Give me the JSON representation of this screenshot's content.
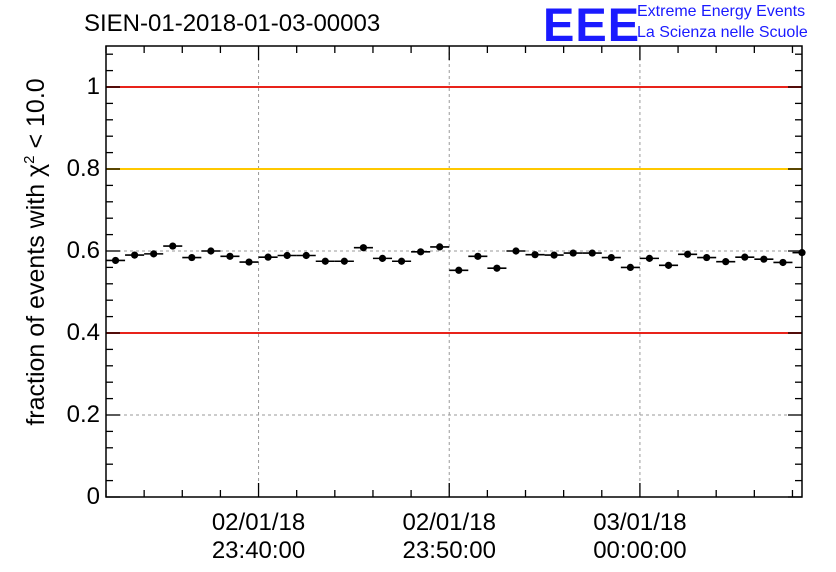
{
  "title": "SIEN-01-2018-01-03-00003",
  "logo": {
    "mark": "EEE",
    "line1": "Extreme Energy Events",
    "line2": "La Scienza nelle Scuole"
  },
  "chart_data": {
    "type": "scatter",
    "title": "SIEN-01-2018-01-03-00003",
    "ylabel_prefix": "fraction of events with ",
    "ylabel_symbol": "χ",
    "ylabel_power": "2",
    "ylabel_suffix": " < 10.0",
    "ylim": [
      0,
      1.1
    ],
    "y_ticks": [
      0,
      0.2,
      0.4,
      0.6,
      0.8,
      1
    ],
    "y_tick_labels": [
      "0",
      "0.2",
      "0.4",
      "0.6",
      "0.8",
      "1"
    ],
    "x_unit": "minutes relative to 02/01/18 23:40:00",
    "xlim": [
      -8,
      28.5
    ],
    "x_ticks": [
      {
        "value": 0,
        "date": "02/01/18",
        "time": "23:40:00"
      },
      {
        "value": 10,
        "date": "02/01/18",
        "time": "23:50:00"
      },
      {
        "value": 20,
        "date": "03/01/18",
        "time": "00:00:00"
      }
    ],
    "grid": true,
    "reference_lines": [
      {
        "y": 1.0,
        "color": "#e8231a"
      },
      {
        "y": 0.8,
        "color": "#ffc800"
      },
      {
        "y": 0.4,
        "color": "#e8231a"
      }
    ],
    "bin_width": 1.0,
    "x": [
      -7.5,
      -6.5,
      -5.5,
      -4.5,
      -3.5,
      -2.5,
      -1.5,
      -0.5,
      0.5,
      1.5,
      2.5,
      3.5,
      4.5,
      5.5,
      6.5,
      7.5,
      8.5,
      9.5,
      10.5,
      11.5,
      12.5,
      13.5,
      14.5,
      15.5,
      16.5,
      17.5,
      18.5,
      19.5,
      20.5,
      21.5,
      22.5,
      23.5,
      24.5,
      25.5,
      26.5,
      27.5,
      28.5
    ],
    "y": [
      0.577,
      0.59,
      0.593,
      0.612,
      0.584,
      0.6,
      0.587,
      0.573,
      0.585,
      0.589,
      0.589,
      0.575,
      0.575,
      0.608,
      0.582,
      0.575,
      0.598,
      0.61,
      0.553,
      0.587,
      0.558,
      0.6,
      0.591,
      0.59,
      0.595,
      0.595,
      0.584,
      0.56,
      0.582,
      0.565,
      0.592,
      0.584,
      0.574,
      0.585,
      0.58,
      0.572,
      0.596
    ],
    "y_error": 0.008
  }
}
